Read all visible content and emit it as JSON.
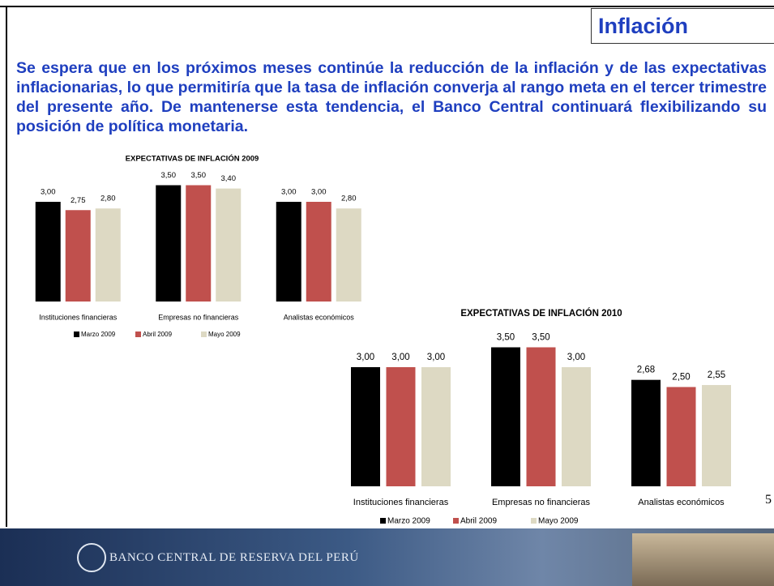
{
  "header": {
    "title": "Inflación"
  },
  "paragraph": "Se espera que en los próximos meses continúe la reducción de la inflación y de las expectativas inflacionarias, lo que permitiría que la tasa de inflación converja al rango meta en el tercer trimestre del presente año. De mantenerse esta tendencia, el Banco Central continuará flexibilizando su posición de política monetaria.",
  "page_number": "5",
  "footer": {
    "institution": "BANCO CENTRAL DE RESERVA DEL PERÚ"
  },
  "chart_data": [
    {
      "type": "bar",
      "title": "EXPECTATIVAS DE INFLACIÓN 2009",
      "categories": [
        "Instituciones financieras",
        "Empresas no financieras",
        "Analistas económicos"
      ],
      "series": [
        {
          "name": "Marzo 2009",
          "color": "#000000",
          "values": [
            3.0,
            3.5,
            3.0
          ],
          "value_labels": [
            "3,00",
            "3,50",
            "3,00"
          ]
        },
        {
          "name": "Abril 2009",
          "color": "#c0504d",
          "values": [
            2.75,
            3.5,
            3.0
          ],
          "value_labels": [
            "2,75",
            "3,50",
            "3,00"
          ]
        },
        {
          "name": "Mayo 2009",
          "color": "#ddd9c3",
          "values": [
            2.8,
            3.4,
            2.8
          ],
          "value_labels": [
            "2,80",
            "3,40",
            "2,80"
          ]
        }
      ]
    },
    {
      "type": "bar",
      "title": "EXPECTATIVAS DE INFLACIÓN 2010",
      "categories": [
        "Instituciones financieras",
        "Empresas no financieras",
        "Analistas económicos"
      ],
      "series": [
        {
          "name": "Marzo 2009",
          "color": "#000000",
          "values": [
            3.0,
            3.5,
            2.68
          ],
          "value_labels": [
            "3,00",
            "3,50",
            "2,68"
          ]
        },
        {
          "name": "Abril 2009",
          "color": "#c0504d",
          "values": [
            3.0,
            3.5,
            2.5
          ],
          "value_labels": [
            "3,00",
            "3,50",
            "2,50"
          ]
        },
        {
          "name": "Mayo 2009",
          "color": "#ddd9c3",
          "values": [
            3.0,
            3.0,
            2.55
          ],
          "value_labels": [
            "3,00",
            "3,00",
            "2,55"
          ]
        }
      ]
    }
  ]
}
